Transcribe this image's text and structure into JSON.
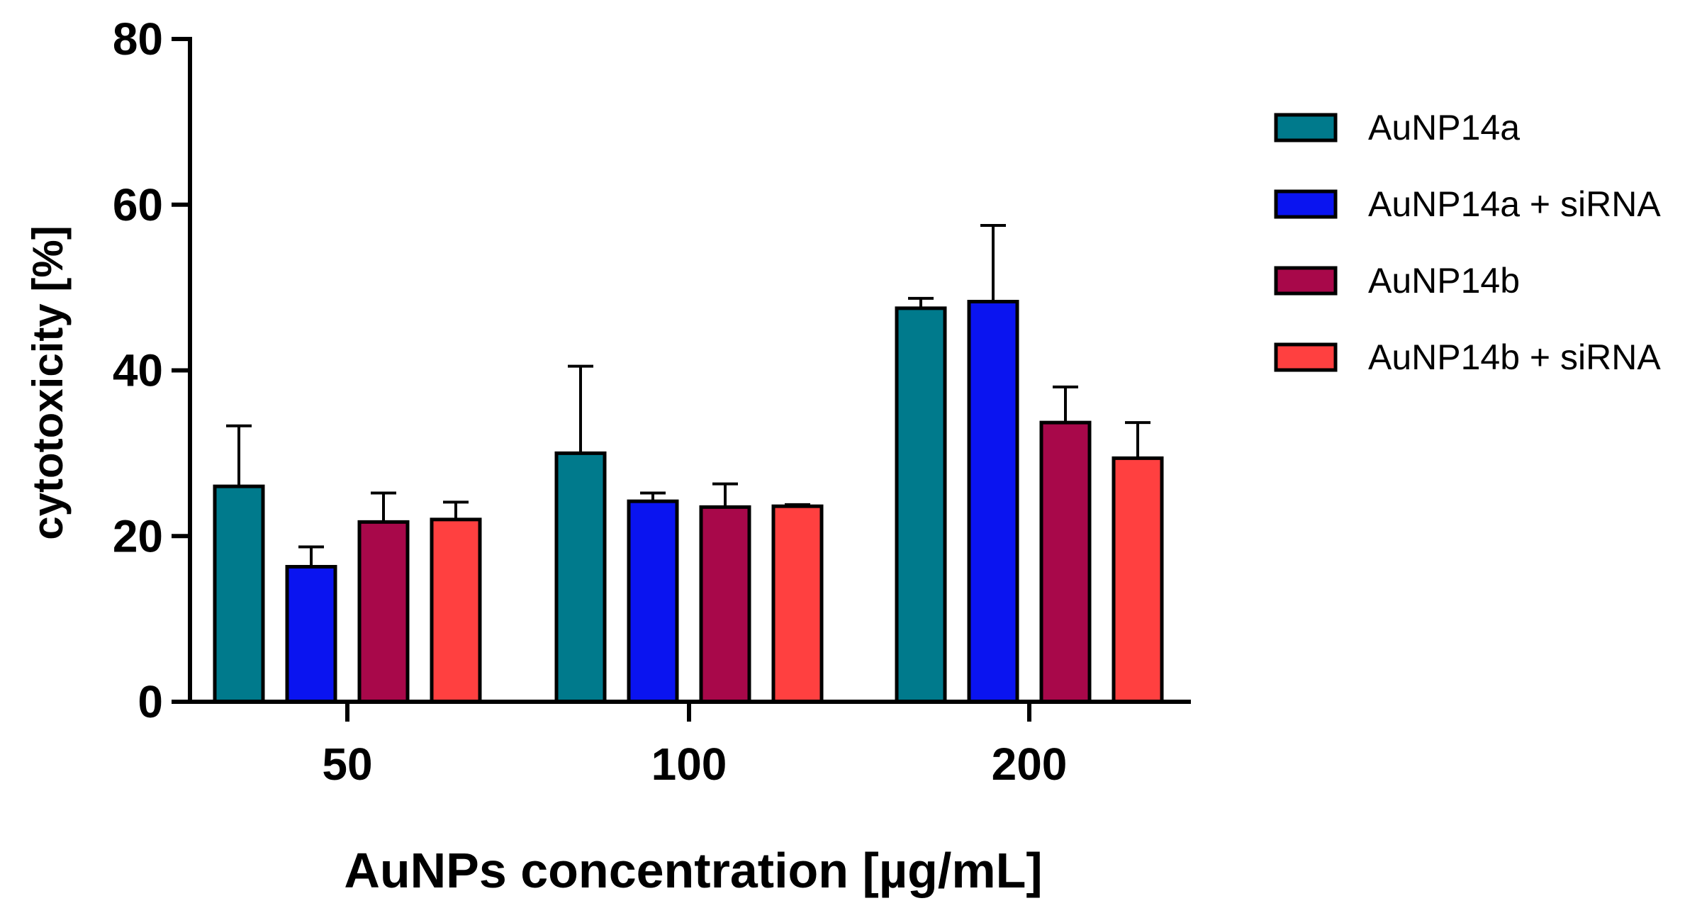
{
  "chart_data": {
    "type": "bar",
    "title": "",
    "xlabel": "AuNPs concentration [µg/mL]",
    "ylabel": "cytotoxicity [%]",
    "ylim": [
      0,
      80
    ],
    "yticks": [
      0,
      20,
      40,
      60,
      80
    ],
    "categories": [
      "50",
      "100",
      "200"
    ],
    "legend_position": "right",
    "error_bars": "upper",
    "series": [
      {
        "name": "AuNP14a",
        "color": "#007a8c",
        "values": [
          26,
          30,
          47.5
        ],
        "errors": [
          7.3,
          10.5,
          1.2
        ]
      },
      {
        "name": "AuNP14a + siRNA",
        "color": "#0a14f0",
        "values": [
          16.3,
          24.2,
          48.3
        ],
        "errors": [
          2.4,
          1.0,
          9.2
        ]
      },
      {
        "name": "AuNP14b",
        "color": "#a8084a",
        "values": [
          21.7,
          23.5,
          33.7
        ],
        "errors": [
          3.5,
          2.8,
          4.3
        ]
      },
      {
        "name": "AuNP14b + siRNA",
        "color": "#ff4040",
        "values": [
          22,
          23.6,
          29.4
        ],
        "errors": [
          2.1,
          0.2,
          4.3
        ]
      }
    ]
  }
}
